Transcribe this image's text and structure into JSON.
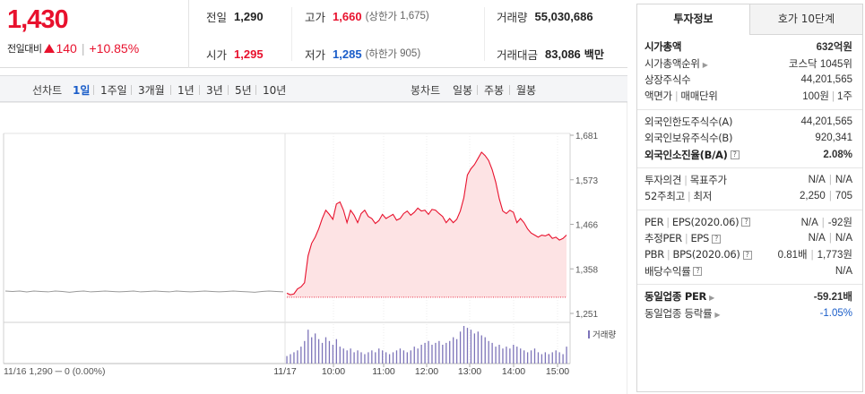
{
  "summary": {
    "price": "1,430",
    "change_label": "전일대비",
    "change_amount": "140",
    "change_rate": "+10.85%",
    "prev_close": {
      "label": "전일",
      "value": "1,290"
    },
    "open": {
      "label": "시가",
      "value": "1,295"
    },
    "high": {
      "label": "고가",
      "value": "1,660",
      "limit_label": "(상한가",
      "limit_value": "1,675)"
    },
    "low": {
      "label": "저가",
      "value": "1,285",
      "limit_label": "(하한가",
      "limit_value": "905)"
    },
    "volume": {
      "label": "거래량",
      "value": "55,030,686"
    },
    "trade_value": {
      "label": "거래대금",
      "value": "83,086",
      "unit": "백만"
    }
  },
  "period_bar": {
    "line_label": "선차트",
    "line_items": [
      "1일",
      "1주일",
      "3개월",
      "1년",
      "3년",
      "5년",
      "10년"
    ],
    "active_index": 0,
    "candle_label": "봉차트",
    "candle_items": [
      "일봉",
      "주봉",
      "월봉"
    ]
  },
  "chart": {
    "y_ticks": [
      "1,681",
      "1,573",
      "1,466",
      "1,358",
      "1,251"
    ],
    "x_ticks": [
      "10:00",
      "11:00",
      "12:00",
      "13:00",
      "14:00",
      "15:00"
    ],
    "prev_day_label": "11/16  1,290 ─ 0 (0.00%)",
    "today_label": "11/17",
    "volume_legend": "거래량"
  },
  "chart_data": {
    "type": "line",
    "ylim": [
      1251,
      1681
    ],
    "prev_close": 1290,
    "prev_day": [
      1305,
      1304,
      1305,
      1303,
      1305,
      1304,
      1303,
      1305,
      1304,
      1302,
      1304,
      1305,
      1303,
      1304,
      1305,
      1304,
      1303,
      1304,
      1305,
      1303,
      1304,
      1305,
      1304,
      1303,
      1305,
      1304,
      1303,
      1304,
      1305,
      1304,
      1303,
      1304,
      1305,
      1304,
      1303,
      1302,
      1304,
      1305,
      1304,
      1303
    ],
    "today_price": [
      1300,
      1296,
      1298,
      1310,
      1315,
      1325,
      1390,
      1420,
      1435,
      1455,
      1480,
      1500,
      1490,
      1478,
      1515,
      1520,
      1500,
      1470,
      1500,
      1488,
      1470,
      1492,
      1500,
      1485,
      1480,
      1468,
      1475,
      1490,
      1480,
      1485,
      1490,
      1476,
      1480,
      1492,
      1498,
      1488,
      1495,
      1505,
      1498,
      1500,
      1490,
      1502,
      1500,
      1492,
      1485,
      1470,
      1480,
      1470,
      1478,
      1498,
      1530,
      1585,
      1600,
      1610,
      1625,
      1640,
      1632,
      1620,
      1598,
      1568,
      1528,
      1498,
      1492,
      1500,
      1495,
      1470,
      1480,
      1470,
      1455,
      1445,
      1440,
      1435,
      1440,
      1438,
      1442,
      1432,
      1435,
      1428,
      1432,
      1440
    ],
    "today_volume": [
      0.2,
      0.25,
      0.3,
      0.35,
      0.45,
      0.6,
      0.9,
      0.7,
      0.8,
      0.65,
      0.55,
      0.7,
      0.6,
      0.5,
      0.65,
      0.45,
      0.4,
      0.35,
      0.4,
      0.3,
      0.35,
      0.3,
      0.25,
      0.3,
      0.35,
      0.3,
      0.4,
      0.35,
      0.3,
      0.25,
      0.3,
      0.35,
      0.4,
      0.35,
      0.3,
      0.35,
      0.45,
      0.4,
      0.5,
      0.55,
      0.6,
      0.5,
      0.55,
      0.6,
      0.5,
      0.55,
      0.6,
      0.7,
      0.65,
      0.85,
      1.0,
      0.95,
      0.9,
      0.8,
      0.85,
      0.75,
      0.7,
      0.6,
      0.55,
      0.45,
      0.5,
      0.4,
      0.45,
      0.4,
      0.5,
      0.45,
      0.4,
      0.35,
      0.3,
      0.35,
      0.4,
      0.3,
      0.25,
      0.3,
      0.25,
      0.3,
      0.35,
      0.3,
      0.25,
      0.45
    ]
  },
  "invest_panel": {
    "tabs": [
      "투자정보",
      "호가 10단계"
    ],
    "market_cap_label": "시가총액",
    "market_cap_value": "632억원",
    "market_cap_rank_label": "시가총액순위",
    "market_cap_rank_value": "코스닥 1045위",
    "shares_label": "상장주식수",
    "shares_value": "44,201,565",
    "par_label": "액면가",
    "unit_label": "매매단위",
    "par_value": "100원",
    "unit_value": "1주",
    "foreign_limit_label": "외국인한도주식수(A)",
    "foreign_limit_value": "44,201,565",
    "foreign_hold_label": "외국인보유주식수(B)",
    "foreign_hold_value": "920,341",
    "foreign_ratio_label": "외국인소진율(B/A)",
    "foreign_ratio_value": "2.08%",
    "opinion_label": "투자의견",
    "target_label": "목표주가",
    "opinion_value": "N/A",
    "target_value": "N/A",
    "w52_high_label": "52주최고",
    "w52_low_label": "최저",
    "w52_high_value": "2,250",
    "w52_low_value": "705",
    "per_label": "PER",
    "eps_label": "EPS(2020.06)",
    "per_value": "N/A",
    "eps_value": "-92원",
    "est_per_label": "추정PER",
    "est_eps_label": "EPS",
    "est_per_value": "N/A",
    "est_eps_value": "N/A",
    "pbr_label": "PBR",
    "bps_label": "BPS(2020.06)",
    "pbr_value": "0.81배",
    "bps_value": "1,773원",
    "dividend_label": "배당수익률",
    "dividend_value": "N/A",
    "industry_per_label": "동일업종 PER",
    "industry_per_value": "-59.21배",
    "industry_rate_label": "동일업종 등락률",
    "industry_rate_value": "-1.05%"
  }
}
